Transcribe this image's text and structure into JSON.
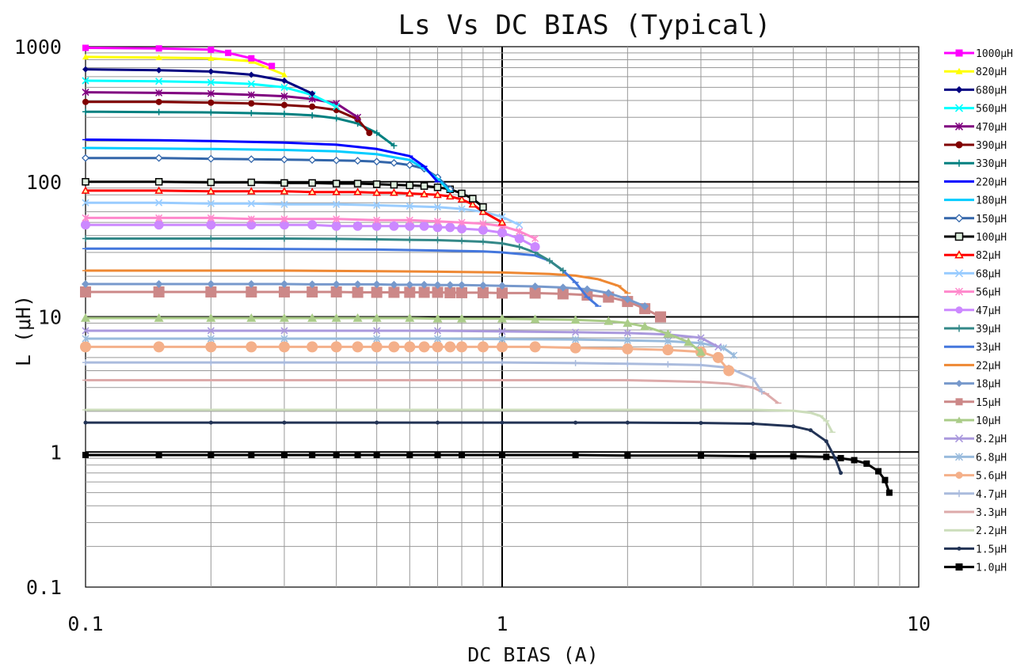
{
  "chart_data": {
    "type": "line",
    "title": "Ls  Vs DC BIAS (Typical)",
    "xlabel": "DC BIAS (A)",
    "ylabel": "L (μH)",
    "xscale": "log",
    "yscale": "log",
    "xlim": [
      0.1,
      10
    ],
    "ylim": [
      0.1,
      1000
    ],
    "xticks": [
      "0.1",
      "1",
      "10"
    ],
    "yticks": [
      "0.1",
      "1",
      "10",
      "100",
      "1000"
    ],
    "grid": true,
    "legend_position": "right",
    "series": [
      {
        "name": "1000μH",
        "color": "#ff00ff",
        "marker": "square",
        "x": [
          0.1,
          0.15,
          0.2,
          0.22,
          0.25,
          0.28
        ],
        "y": [
          980,
          970,
          950,
          900,
          820,
          720
        ]
      },
      {
        "name": "820μH",
        "color": "#ffff00",
        "marker": "triangle",
        "x": [
          0.1,
          0.15,
          0.2,
          0.25,
          0.3
        ],
        "y": [
          840,
          830,
          820,
          780,
          620
        ]
      },
      {
        "name": "680μH",
        "color": "#000080",
        "marker": "diamond",
        "x": [
          0.1,
          0.15,
          0.2,
          0.25,
          0.3,
          0.35
        ],
        "y": [
          680,
          670,
          655,
          620,
          560,
          450
        ]
      },
      {
        "name": "560μH",
        "color": "#00ffff",
        "marker": "x",
        "x": [
          0.1,
          0.15,
          0.2,
          0.25,
          0.3,
          0.35,
          0.4
        ],
        "y": [
          560,
          555,
          545,
          530,
          500,
          440,
          360
        ]
      },
      {
        "name": "470μH",
        "color": "#800080",
        "marker": "star",
        "x": [
          0.1,
          0.15,
          0.2,
          0.25,
          0.3,
          0.35,
          0.4,
          0.45
        ],
        "y": [
          460,
          455,
          450,
          440,
          430,
          410,
          380,
          300
        ]
      },
      {
        "name": "390μH",
        "color": "#800000",
        "marker": "circle",
        "x": [
          0.1,
          0.15,
          0.2,
          0.25,
          0.3,
          0.35,
          0.4,
          0.45,
          0.48
        ],
        "y": [
          390,
          390,
          385,
          380,
          370,
          360,
          340,
          290,
          230
        ]
      },
      {
        "name": "330μH",
        "color": "#008080",
        "marker": "plus",
        "x": [
          0.1,
          0.15,
          0.2,
          0.25,
          0.3,
          0.35,
          0.4,
          0.45,
          0.5,
          0.55
        ],
        "y": [
          330,
          328,
          326,
          322,
          318,
          310,
          295,
          270,
          230,
          185
        ]
      },
      {
        "name": "220μH",
        "color": "#0000ff",
        "marker": "dash",
        "x": [
          0.1,
          0.15,
          0.2,
          0.3,
          0.4,
          0.5,
          0.6,
          0.65,
          0.7
        ],
        "y": [
          205,
          203,
          200,
          195,
          188,
          175,
          155,
          130,
          100
        ]
      },
      {
        "name": "180μH",
        "color": "#00ccff",
        "marker": "dash",
        "x": [
          0.1,
          0.15,
          0.2,
          0.3,
          0.4,
          0.5,
          0.6,
          0.65,
          0.7,
          0.75
        ],
        "y": [
          178,
          176,
          175,
          172,
          168,
          160,
          145,
          125,
          105,
          85
        ]
      },
      {
        "name": "150μH",
        "color": "#3366aa",
        "marker": "diamond-open",
        "x": [
          0.1,
          0.15,
          0.2,
          0.25,
          0.3,
          0.35,
          0.4,
          0.45,
          0.5,
          0.55,
          0.6,
          0.65,
          0.7,
          0.75
        ],
        "y": [
          150,
          150,
          148,
          147,
          146,
          145,
          144,
          143,
          141,
          138,
          133,
          125,
          108,
          88
        ]
      },
      {
        "name": "100μH",
        "color": "#000000",
        "marker": "square-open",
        "x": [
          0.1,
          0.15,
          0.2,
          0.25,
          0.3,
          0.35,
          0.4,
          0.45,
          0.5,
          0.55,
          0.6,
          0.65,
          0.7,
          0.75,
          0.8,
          0.85,
          0.9
        ],
        "y": [
          100,
          100,
          99,
          99,
          98,
          98,
          97,
          97,
          96,
          95,
          94,
          93,
          91,
          88,
          82,
          75,
          65
        ]
      },
      {
        "name": "82μH",
        "color": "#ff0000",
        "marker": "triangle-open",
        "x": [
          0.1,
          0.15,
          0.2,
          0.25,
          0.3,
          0.35,
          0.4,
          0.45,
          0.5,
          0.55,
          0.6,
          0.65,
          0.7,
          0.75,
          0.8,
          0.85,
          0.9,
          1.0
        ],
        "y": [
          86,
          86,
          85,
          85,
          85,
          84,
          84,
          84,
          83,
          83,
          82,
          81,
          80,
          78,
          74,
          68,
          60,
          50
        ]
      },
      {
        "name": "68μH",
        "color": "#99ccff",
        "marker": "x",
        "x": [
          0.1,
          0.15,
          0.2,
          0.25,
          0.3,
          0.4,
          0.5,
          0.6,
          0.7,
          0.8,
          0.9,
          1.0,
          1.1
        ],
        "y": [
          70,
          70,
          69,
          69,
          68,
          68,
          67,
          66,
          65,
          63,
          60,
          55,
          48
        ]
      },
      {
        "name": "56μH",
        "color": "#ff88cc",
        "marker": "star",
        "x": [
          0.1,
          0.15,
          0.2,
          0.25,
          0.3,
          0.4,
          0.5,
          0.6,
          0.7,
          0.8,
          0.9,
          1.0,
          1.1,
          1.2
        ],
        "y": [
          54,
          54,
          54,
          53,
          53,
          53,
          52,
          52,
          51,
          50,
          49,
          47,
          43,
          38
        ]
      },
      {
        "name": "47μH",
        "color": "#cc88ff",
        "marker": "circle",
        "x": [
          0.1,
          0.15,
          0.2,
          0.25,
          0.3,
          0.35,
          0.4,
          0.45,
          0.5,
          0.55,
          0.6,
          0.65,
          0.7,
          0.75,
          0.8,
          0.9,
          1.0,
          1.1,
          1.2
        ],
        "y": [
          48,
          48,
          48,
          48,
          48,
          48,
          47,
          47,
          47,
          47,
          47,
          47,
          46,
          46,
          45,
          44,
          42,
          38,
          33
        ]
      },
      {
        "name": "39μH",
        "color": "#338888",
        "marker": "plus",
        "x": [
          0.1,
          0.2,
          0.3,
          0.4,
          0.5,
          0.6,
          0.7,
          0.8,
          0.9,
          1.0,
          1.1,
          1.2,
          1.3,
          1.4
        ],
        "y": [
          38,
          38,
          38,
          37.8,
          37.5,
          37.2,
          37,
          36.5,
          36,
          35,
          33,
          30,
          26,
          22
        ]
      },
      {
        "name": "33μH",
        "color": "#4477dd",
        "marker": "dash",
        "x": [
          0.1,
          0.2,
          0.3,
          0.5,
          0.7,
          0.9,
          1.0,
          1.2,
          1.3,
          1.4,
          1.5,
          1.6,
          1.7
        ],
        "y": [
          32,
          32,
          31.8,
          31.5,
          31,
          30.5,
          30,
          28.5,
          26,
          22,
          18,
          14,
          12
        ]
      },
      {
        "name": "22μH",
        "color": "#ee8833",
        "marker": "dash",
        "x": [
          0.1,
          0.2,
          0.3,
          0.5,
          0.7,
          1.0,
          1.3,
          1.5,
          1.7,
          1.9,
          2.0
        ],
        "y": [
          22,
          22,
          22,
          21.8,
          21.6,
          21.3,
          20.8,
          20.2,
          19,
          17,
          15
        ]
      },
      {
        "name": "18μH",
        "color": "#7799cc",
        "marker": "diamond",
        "x": [
          0.1,
          0.15,
          0.2,
          0.25,
          0.3,
          0.35,
          0.4,
          0.45,
          0.5,
          0.55,
          0.6,
          0.65,
          0.7,
          0.75,
          0.8,
          0.9,
          1.0,
          1.2,
          1.4,
          1.6,
          1.8,
          2.0,
          2.2
        ],
        "y": [
          17.5,
          17.5,
          17.5,
          17.5,
          17.5,
          17.4,
          17.4,
          17.4,
          17.4,
          17.3,
          17.3,
          17.3,
          17.2,
          17.2,
          17.2,
          17.1,
          17,
          16.8,
          16.5,
          16,
          15,
          13.5,
          12
        ]
      },
      {
        "name": "15μH",
        "color": "#cc8888",
        "marker": "square",
        "x": [
          0.1,
          0.15,
          0.2,
          0.25,
          0.3,
          0.35,
          0.4,
          0.45,
          0.5,
          0.55,
          0.6,
          0.65,
          0.7,
          0.75,
          0.8,
          0.9,
          1.0,
          1.2,
          1.4,
          1.6,
          1.8,
          2.0,
          2.2,
          2.4
        ],
        "y": [
          15.3,
          15.3,
          15.3,
          15.3,
          15.3,
          15.3,
          15.3,
          15.2,
          15.2,
          15.2,
          15.2,
          15.2,
          15.2,
          15.1,
          15.1,
          15.1,
          15,
          15,
          14.8,
          14.5,
          14,
          13,
          11.5,
          10
        ]
      },
      {
        "name": "10μH",
        "color": "#aacc88",
        "marker": "triangle",
        "x": [
          0.1,
          0.15,
          0.2,
          0.25,
          0.3,
          0.35,
          0.4,
          0.45,
          0.5,
          0.6,
          0.7,
          0.8,
          1.0,
          1.2,
          1.5,
          1.8,
          2.0,
          2.2,
          2.5,
          2.8,
          3.0
        ],
        "y": [
          9.8,
          9.8,
          9.8,
          9.8,
          9.8,
          9.8,
          9.8,
          9.8,
          9.8,
          9.8,
          9.7,
          9.7,
          9.7,
          9.6,
          9.5,
          9.3,
          9,
          8.5,
          7.5,
          6.5,
          5.5
        ]
      },
      {
        "name": "8.2μH",
        "color": "#aa99dd",
        "marker": "x",
        "x": [
          0.1,
          0.2,
          0.3,
          0.5,
          0.7,
          1.0,
          1.5,
          2.0,
          2.5,
          3.0,
          3.3
        ],
        "y": [
          7.9,
          7.9,
          7.9,
          7.9,
          7.9,
          7.8,
          7.7,
          7.6,
          7.4,
          7,
          6
        ]
      },
      {
        "name": "6.8μH",
        "color": "#99bbdd",
        "marker": "star",
        "x": [
          0.1,
          0.2,
          0.3,
          0.5,
          0.7,
          1.0,
          1.5,
          2.0,
          2.5,
          3.0,
          3.4,
          3.6
        ],
        "y": [
          6.9,
          6.9,
          6.9,
          6.9,
          6.9,
          6.85,
          6.8,
          6.7,
          6.6,
          6.4,
          5.9,
          5.2
        ]
      },
      {
        "name": "5.6μH",
        "color": "#f4b08a",
        "marker": "circle",
        "x": [
          0.1,
          0.15,
          0.2,
          0.25,
          0.3,
          0.35,
          0.4,
          0.45,
          0.5,
          0.55,
          0.6,
          0.65,
          0.7,
          0.75,
          0.8,
          0.9,
          1.0,
          1.2,
          1.5,
          2.0,
          2.5,
          3.0,
          3.3,
          3.5
        ],
        "y": [
          6,
          6,
          6,
          6,
          6,
          6,
          6,
          6,
          6,
          6,
          6,
          6,
          6,
          6,
          6,
          6,
          6,
          6,
          5.9,
          5.8,
          5.7,
          5.5,
          5,
          4
        ]
      },
      {
        "name": "4.7μH",
        "color": "#aabbdd",
        "marker": "plus",
        "x": [
          0.1,
          0.2,
          0.3,
          0.5,
          0.7,
          1.0,
          1.5,
          2.0,
          2.5,
          3.0,
          3.5,
          4.0,
          4.2
        ],
        "y": [
          4.6,
          4.6,
          4.6,
          4.6,
          4.6,
          4.6,
          4.55,
          4.5,
          4.45,
          4.4,
          4.2,
          3.5,
          2.8
        ]
      },
      {
        "name": "3.3μH",
        "color": "#ddaaaa",
        "marker": "dash",
        "x": [
          0.1,
          0.2,
          0.3,
          0.5,
          0.7,
          1.0,
          1.5,
          2.0,
          2.5,
          3.0,
          3.5,
          4.0,
          4.3,
          4.6
        ],
        "y": [
          3.4,
          3.4,
          3.4,
          3.4,
          3.4,
          3.4,
          3.4,
          3.4,
          3.35,
          3.3,
          3.2,
          3,
          2.7,
          2.3
        ]
      },
      {
        "name": "2.2μH",
        "color": "#ccddbb",
        "marker": "dash",
        "x": [
          0.1,
          0.2,
          0.3,
          0.5,
          0.7,
          1.0,
          1.5,
          2.0,
          3.0,
          4.0,
          5.0,
          5.5,
          5.8,
          6.0,
          6.2
        ],
        "y": [
          2.05,
          2.05,
          2.05,
          2.05,
          2.05,
          2.05,
          2.05,
          2.05,
          2.05,
          2.05,
          2.02,
          1.95,
          1.85,
          1.7,
          1.4
        ]
      },
      {
        "name": "1.5μH",
        "color": "#223355",
        "marker": "dot",
        "x": [
          0.1,
          0.2,
          0.3,
          0.5,
          0.7,
          1.0,
          1.5,
          2.0,
          3.0,
          4.0,
          5.0,
          5.5,
          6.0,
          6.3,
          6.5
        ],
        "y": [
          1.65,
          1.65,
          1.65,
          1.65,
          1.65,
          1.65,
          1.65,
          1.65,
          1.64,
          1.62,
          1.55,
          1.45,
          1.2,
          0.9,
          0.7
        ]
      },
      {
        "name": "1.0μH",
        "color": "#000000",
        "marker": "square",
        "x": [
          0.1,
          0.15,
          0.2,
          0.25,
          0.3,
          0.35,
          0.4,
          0.45,
          0.5,
          0.6,
          0.7,
          0.8,
          1.0,
          1.5,
          2.0,
          3.0,
          4.0,
          5.0,
          6.0,
          6.5,
          7.0,
          7.5,
          8.0,
          8.3,
          8.5
        ],
        "y": [
          0.95,
          0.95,
          0.95,
          0.95,
          0.95,
          0.95,
          0.95,
          0.95,
          0.95,
          0.95,
          0.95,
          0.95,
          0.95,
          0.95,
          0.94,
          0.94,
          0.93,
          0.93,
          0.92,
          0.9,
          0.87,
          0.82,
          0.72,
          0.62,
          0.5
        ]
      }
    ]
  }
}
